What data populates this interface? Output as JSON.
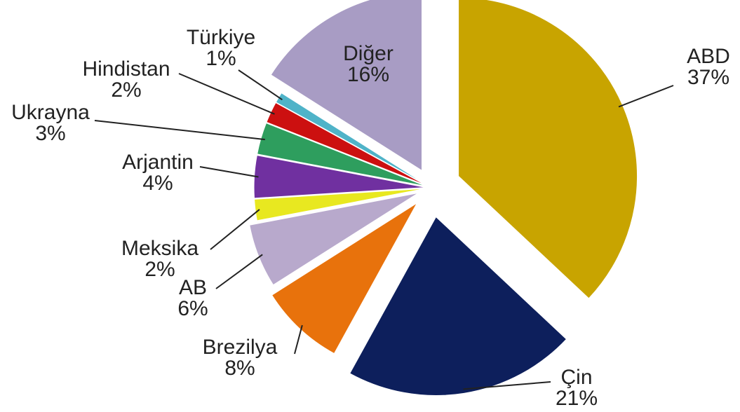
{
  "chart_data": {
    "type": "pie",
    "categories": [
      "ABD",
      "Çin",
      "Brezilya",
      "AB",
      "Meksika",
      "Arjantin",
      "Ukrayna",
      "Hindistan",
      "Türkiye",
      "Diğer"
    ],
    "values": [
      37,
      21,
      8,
      6,
      2,
      4,
      3,
      2,
      1,
      16
    ],
    "value_labels": [
      "37%",
      "21%",
      "8%",
      "6%",
      "2%",
      "4%",
      "3%",
      "2%",
      "1%",
      "16%"
    ],
    "colors": [
      "#c8a400",
      "#0d1f5c",
      "#e8720c",
      "#b8a9cc",
      "#e8e820",
      "#7030a0",
      "#2e9e5e",
      "#cc1010",
      "#4fb3c8",
      "#a89cc4"
    ]
  }
}
